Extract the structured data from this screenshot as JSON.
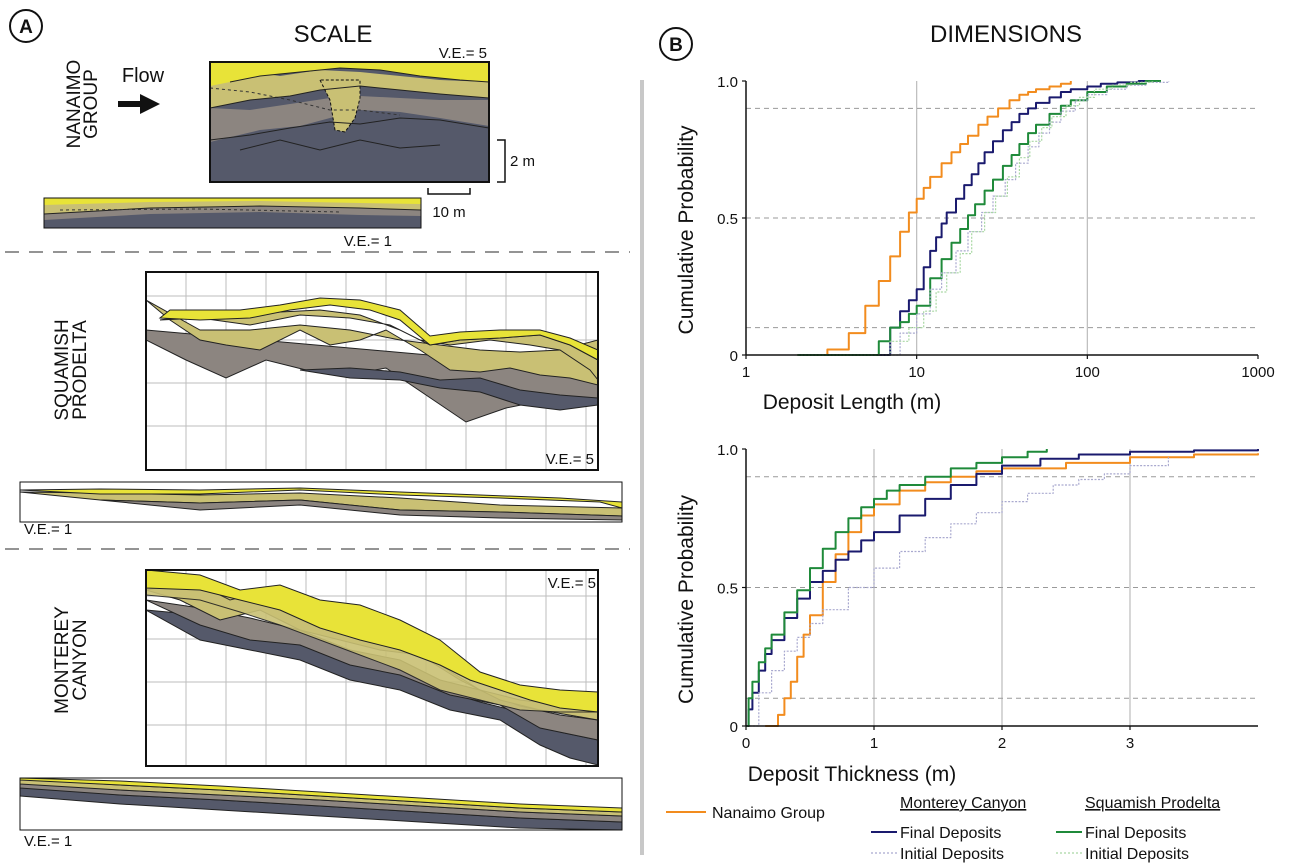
{
  "panel_a": {
    "label": "A",
    "title": "SCALE",
    "flow_label": "Flow",
    "nanaimo": {
      "name_line1": "NANAIMO",
      "name_line2": "GROUP",
      "ve_top": "V.E.= 5",
      "ve_bottom": "V.E.= 1",
      "scale_vertical": "2 m",
      "scale_horizontal": "10 m"
    },
    "squamish": {
      "name_line1": "SQUAMISH",
      "name_line2": "PRODELTA",
      "ve_top": "V.E.= 5",
      "ve_bottom": "V.E.= 1"
    },
    "monterey": {
      "name_line1": "MONTEREY",
      "name_line2": "CANYON",
      "ve_top": "V.E.= 5",
      "ve_bottom": "V.E.= 1"
    }
  },
  "panel_b": {
    "label": "B",
    "title": "DIMENSIONS"
  },
  "colors": {
    "nanaimo": "#f28c1e",
    "monterey": "#1a1a6e",
    "squamish": "#1f8a3a",
    "monterey_initial": "#a9a9cf",
    "squamish_initial": "#a9d8a4",
    "yellow": "#e8e338",
    "olive": "#c9c074",
    "grey": "#8c8580",
    "dark": "#55596a"
  },
  "legend": {
    "nanaimo": "Nanaimo Group",
    "monterey_header": "Monterey Canyon",
    "squamish_header": "Squamish Prodelta",
    "final": "Final Deposits",
    "initial": "Initial Deposits"
  },
  "chart_data": [
    {
      "type": "line",
      "xscale": "log",
      "xlabel": "Deposit Length (m)",
      "ylabel": "Cumulative Probability",
      "xlim": [
        1,
        1000
      ],
      "ylim": [
        0,
        1
      ],
      "xticks": [
        "1",
        "10",
        "100",
        "1000"
      ],
      "yticks": [
        "0",
        "0.5",
        "1.0"
      ],
      "grid": true,
      "series": [
        {
          "key": "nanaimo",
          "x": [
            2,
            3,
            4,
            5,
            6,
            7,
            8,
            9,
            10,
            11,
            12,
            14,
            16,
            18,
            20,
            23,
            26,
            30,
            35,
            40,
            45,
            50,
            60,
            70,
            80
          ],
          "y": [
            0,
            0.02,
            0.08,
            0.18,
            0.27,
            0.36,
            0.45,
            0.52,
            0.57,
            0.61,
            0.65,
            0.7,
            0.74,
            0.77,
            0.8,
            0.84,
            0.87,
            0.9,
            0.93,
            0.95,
            0.96,
            0.97,
            0.98,
            0.99,
            1.0
          ]
        },
        {
          "key": "monterey_final",
          "x": [
            6,
            7,
            8,
            9,
            10,
            11,
            12,
            13,
            14,
            15,
            17,
            19,
            21,
            23,
            25,
            28,
            32,
            36,
            40,
            45,
            50,
            60,
            70,
            80,
            100,
            120,
            150,
            200,
            250
          ],
          "y": [
            0,
            0.1,
            0.16,
            0.2,
            0.24,
            0.32,
            0.38,
            0.43,
            0.48,
            0.52,
            0.57,
            0.62,
            0.66,
            0.7,
            0.74,
            0.78,
            0.82,
            0.85,
            0.88,
            0.9,
            0.92,
            0.94,
            0.96,
            0.97,
            0.98,
            0.99,
            0.995,
            1.0,
            1.0
          ]
        },
        {
          "key": "squamish_final",
          "x": [
            2,
            6,
            7,
            8,
            9,
            10,
            12,
            14,
            16,
            18,
            20,
            22,
            25,
            28,
            32,
            36,
            40,
            45,
            50,
            60,
            70,
            80,
            100,
            130,
            170,
            220,
            270
          ],
          "y": [
            0,
            0.05,
            0.1,
            0.12,
            0.15,
            0.18,
            0.28,
            0.35,
            0.41,
            0.46,
            0.51,
            0.55,
            0.6,
            0.64,
            0.69,
            0.73,
            0.77,
            0.81,
            0.84,
            0.88,
            0.91,
            0.93,
            0.96,
            0.98,
            0.99,
            1.0,
            1.0
          ]
        },
        {
          "key": "monterey_initial",
          "x": [
            6,
            8,
            10,
            12,
            14,
            17,
            20,
            24,
            28,
            33,
            38,
            45,
            52,
            60,
            70,
            85,
            100,
            130,
            170,
            220,
            300
          ],
          "y": [
            0,
            0.08,
            0.15,
            0.24,
            0.3,
            0.38,
            0.45,
            0.52,
            0.58,
            0.64,
            0.7,
            0.76,
            0.81,
            0.85,
            0.89,
            0.93,
            0.95,
            0.97,
            0.985,
            0.995,
            1.0
          ]
        },
        {
          "key": "squamish_initial",
          "x": [
            2,
            7,
            9,
            11,
            13,
            15,
            18,
            21,
            25,
            29,
            34,
            40,
            46,
            54,
            62,
            75,
            90,
            110,
            140,
            180,
            240
          ],
          "y": [
            0,
            0.05,
            0.1,
            0.16,
            0.23,
            0.3,
            0.37,
            0.45,
            0.52,
            0.58,
            0.65,
            0.72,
            0.78,
            0.83,
            0.87,
            0.91,
            0.94,
            0.97,
            0.985,
            0.995,
            1.0
          ]
        }
      ]
    },
    {
      "type": "line",
      "xscale": "linear",
      "xlabel": "Deposit Thickness (m)",
      "ylabel": "Cumulative Probability",
      "xlim": [
        0,
        4
      ],
      "ylim": [
        0,
        1
      ],
      "xticks": [
        "0",
        "1",
        "2",
        "3"
      ],
      "yticks": [
        "0",
        "0.5",
        "1.0"
      ],
      "grid": true,
      "series": [
        {
          "key": "nanaimo",
          "x": [
            0.15,
            0.25,
            0.3,
            0.35,
            0.4,
            0.45,
            0.5,
            0.6,
            0.7,
            0.8,
            0.9,
            1.0,
            1.2,
            1.4,
            1.6,
            1.8,
            2.0,
            2.5,
            3.0,
            3.5,
            4.0
          ],
          "y": [
            0,
            0.04,
            0.1,
            0.16,
            0.25,
            0.33,
            0.4,
            0.52,
            0.62,
            0.7,
            0.76,
            0.8,
            0.85,
            0.88,
            0.9,
            0.92,
            0.93,
            0.95,
            0.97,
            0.98,
            0.985
          ]
        },
        {
          "key": "monterey_final",
          "x": [
            0,
            0.02,
            0.05,
            0.1,
            0.15,
            0.2,
            0.3,
            0.4,
            0.5,
            0.6,
            0.7,
            0.8,
            0.9,
            1.0,
            1.2,
            1.4,
            1.6,
            1.8,
            2.0,
            2.3,
            2.6,
            3.0,
            3.5,
            4.0
          ],
          "y": [
            0,
            0.06,
            0.12,
            0.2,
            0.26,
            0.31,
            0.39,
            0.46,
            0.52,
            0.56,
            0.6,
            0.63,
            0.67,
            0.7,
            0.76,
            0.82,
            0.87,
            0.91,
            0.94,
            0.965,
            0.98,
            0.99,
            0.995,
            1.0
          ]
        },
        {
          "key": "squamish_final",
          "x": [
            0,
            0.02,
            0.05,
            0.1,
            0.15,
            0.2,
            0.3,
            0.4,
            0.5,
            0.6,
            0.7,
            0.8,
            0.9,
            1.0,
            1.1,
            1.2,
            1.4,
            1.6,
            1.8,
            2.0,
            2.2,
            2.35
          ],
          "y": [
            0,
            0.1,
            0.16,
            0.23,
            0.28,
            0.33,
            0.41,
            0.49,
            0.57,
            0.64,
            0.7,
            0.75,
            0.79,
            0.82,
            0.85,
            0.87,
            0.9,
            0.93,
            0.95,
            0.97,
            0.99,
            1.0
          ]
        },
        {
          "key": "monterey_initial",
          "x": [
            0,
            0.1,
            0.2,
            0.3,
            0.4,
            0.5,
            0.6,
            0.8,
            1.0,
            1.2,
            1.4,
            1.6,
            1.8,
            2.0,
            2.2,
            2.4,
            2.6,
            2.8,
            3.0,
            3.3
          ],
          "y": [
            0,
            0.12,
            0.2,
            0.27,
            0.32,
            0.37,
            0.42,
            0.5,
            0.57,
            0.63,
            0.68,
            0.73,
            0.77,
            0.81,
            0.84,
            0.87,
            0.89,
            0.91,
            0.94,
            0.97
          ]
        }
      ]
    }
  ]
}
